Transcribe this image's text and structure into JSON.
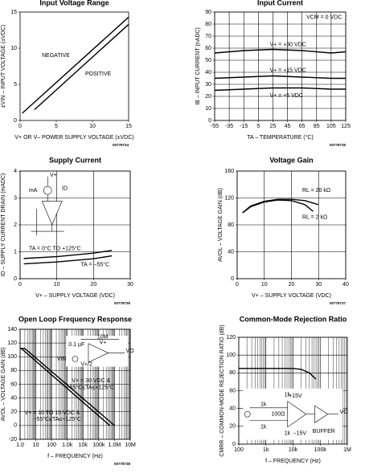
{
  "chart_data": [
    {
      "type": "line",
      "title": "Input Voltage Range",
      "xlabel": "V+ OR V– POWER SUPPLY VOLTAGE (±VDC)",
      "ylabel": "±VIN – INPUT VOLTAGE (±VDC)",
      "code": "00778734",
      "xlim": [
        0,
        15
      ],
      "ylim": [
        0,
        15
      ],
      "xticks": [
        0,
        5,
        10,
        15
      ],
      "yticks": [
        0,
        5,
        10,
        15
      ],
      "grid": false,
      "xscale": "linear",
      "series": [
        {
          "name": "NEGATIVE",
          "color": "#000000",
          "x": [
            0.3,
            15
          ],
          "values": [
            1,
            14.3
          ]
        },
        {
          "name": "POSITIVE",
          "color": "#000000",
          "x": [
            2,
            15
          ],
          "values": [
            1.5,
            13.3
          ]
        }
      ],
      "annotations": [
        "NEGATIVE",
        "POSITIVE"
      ]
    },
    {
      "type": "line",
      "title": "Input Current",
      "xlabel": "TA – TEMPERATURE (°C)",
      "ylabel": "IB – INPUT CURRENT (nADC)",
      "code": "00778735",
      "xlim": [
        -55,
        125
      ],
      "ylim": [
        0,
        90
      ],
      "xticks": [
        -55,
        -35,
        -15,
        5,
        25,
        45,
        65,
        85,
        105,
        125
      ],
      "yticks": [
        0,
        10,
        20,
        30,
        40,
        50,
        60,
        70,
        80,
        90
      ],
      "grid": true,
      "xscale": "linear",
      "series": [
        {
          "name": "V+ = +30 VDC",
          "color": "#000000",
          "x": [
            -55,
            -15,
            25,
            65,
            105,
            125
          ],
          "values": [
            56,
            58,
            59,
            58,
            56,
            57
          ]
        },
        {
          "name": "V+ = +15 VDC",
          "color": "#000000",
          "x": [
            -55,
            -15,
            25,
            65,
            105,
            125
          ],
          "values": [
            35,
            36,
            37,
            36,
            35,
            35
          ]
        },
        {
          "name": "V+ = +5 VDC",
          "color": "#000000",
          "x": [
            -55,
            -15,
            25,
            65,
            105,
            125
          ],
          "values": [
            25,
            26,
            27,
            27,
            26,
            26
          ]
        }
      ],
      "annotations": [
        "VCM = 0 VDC",
        "V+ = +30 VDC",
        "V+ = +15 VDC",
        "V+ = +5 VDC"
      ]
    },
    {
      "type": "line",
      "title": "Supply Current",
      "xlabel": "V+ – SUPPLY VOLTAGE (VDC)",
      "ylabel": "ID – SUPPLY CURRENT DRAIN (mADC)",
      "code": "00778736",
      "xlim": [
        0,
        30
      ],
      "ylim": [
        0,
        4
      ],
      "xticks": [
        0,
        10,
        20,
        30
      ],
      "yticks": [
        0,
        1,
        2,
        3,
        4
      ],
      "grid": true,
      "xscale": "linear",
      "series": [
        {
          "name": "TA = 0°C TO +125°C",
          "color": "#000000",
          "x": [
            1,
            10,
            20,
            25
          ],
          "values": [
            0.75,
            0.82,
            0.95,
            1.05
          ]
        },
        {
          "name": "TA = −55°C",
          "color": "#000000",
          "x": [
            1,
            10,
            20,
            25
          ],
          "values": [
            0.55,
            0.62,
            0.74,
            0.85
          ]
        }
      ],
      "annotations": [
        "TA = 0°C TO +125°C",
        "TA = −55°C"
      ],
      "inset_labels": [
        "V+",
        "mA",
        "ID"
      ]
    },
    {
      "type": "line",
      "title": "Voltage Gain",
      "xlabel": "V+ – SUPPLY VOLTAGE (VDC)",
      "ylabel": "AVOL – VOLTAGE GAIN (dB)",
      "code": "00778737",
      "xlim": [
        0,
        40
      ],
      "ylim": [
        0,
        160
      ],
      "xticks": [
        0,
        10,
        20,
        30,
        40
      ],
      "yticks": [
        0,
        40,
        80,
        120,
        160
      ],
      "grid": true,
      "xscale": "linear",
      "series": [
        {
          "name": "RL = 20 kΩ",
          "color": "#000000",
          "x": [
            2,
            5,
            10,
            15,
            20,
            25,
            30
          ],
          "values": [
            98,
            108,
            115,
            118,
            118,
            116,
            110
          ]
        },
        {
          "name": "RL = 2 kΩ",
          "color": "#000000",
          "x": [
            2,
            5,
            10,
            15,
            20,
            25,
            28
          ],
          "values": [
            98,
            107,
            114,
            117,
            116,
            110,
            100
          ]
        }
      ],
      "annotations": [
        "RL = 20 kΩ",
        "RL = 2 kΩ"
      ]
    },
    {
      "type": "line",
      "title": "Open Loop Frequency Response",
      "xlabel": "f – FREQUENCY (Hz)",
      "ylabel": "AVOL – VOLTAGE GAIN (dB)",
      "code": "00778738",
      "xlim": [
        1,
        10000000
      ],
      "ylim": [
        -20,
        140
      ],
      "xticks": [
        {
          "value": 1,
          "label": "1.0"
        },
        10,
        100,
        {
          "value": 1000,
          "label": "1.0k"
        },
        {
          "value": 10000,
          "label": "10k"
        },
        {
          "value": 100000,
          "label": "100k"
        },
        {
          "value": 1000000,
          "label": "1.0M"
        },
        {
          "value": 10000000,
          "label": "10M"
        }
      ],
      "yticks": [
        -20,
        0,
        20,
        40,
        60,
        80,
        100,
        120,
        140
      ],
      "grid": true,
      "xscale": "log",
      "series": [
        {
          "name": "V+ = 30 VDC & −55°C≤TA≤+125°C",
          "color": "#000000",
          "x": [
            1,
            2,
            1000000
          ],
          "values": [
            112,
            112,
            0
          ]
        },
        {
          "name": "V+ = 10 TO 15 VDC & −55°C≤TA≤+125°C",
          "color": "#000000",
          "x": [
            1,
            1.2,
            500000
          ],
          "values": [
            112,
            112,
            0
          ]
        }
      ],
      "annotations": [
        "V+ = 30 VDC &",
        "−55°C≤TA≤+125°C",
        "V+ = 10 TO 15 VDC &",
        "−55°C≤TA≤+125°C"
      ],
      "inset_labels": [
        "10M",
        "0.1 µF",
        "V+",
        "VIN",
        "V+/2",
        "VO"
      ]
    },
    {
      "type": "line",
      "title": "Common-Mode Rejection Ratio",
      "xlabel": "f – FREQUENCY (Hz)",
      "ylabel": "CMRR – COMMON-MODE REJECTION RATIO (dB)",
      "xlim": [
        100,
        1000000
      ],
      "ylim": [
        0,
        120
      ],
      "xticks": [
        100,
        {
          "value": 1000,
          "label": "1k"
        },
        {
          "value": 10000,
          "label": "10k"
        },
        {
          "value": 100000,
          "label": "100k"
        },
        {
          "value": 1000000,
          "label": "1M"
        }
      ],
      "yticks": [
        0,
        20,
        40,
        60,
        80,
        100,
        120
      ],
      "grid": true,
      "xscale": "log",
      "series": [
        {
          "name": "CMRR",
          "color": "#000000",
          "x": [
            100,
            1000,
            10000,
            20000,
            40000,
            70000
          ],
          "values": [
            85,
            85,
            85,
            84,
            80,
            73
          ]
        }
      ],
      "inset_labels": [
        "+15V",
        "1k",
        "100Ω",
        "1k",
        "1k",
        "1k",
        "−15V",
        "BUFFER",
        "VO"
      ]
    }
  ]
}
